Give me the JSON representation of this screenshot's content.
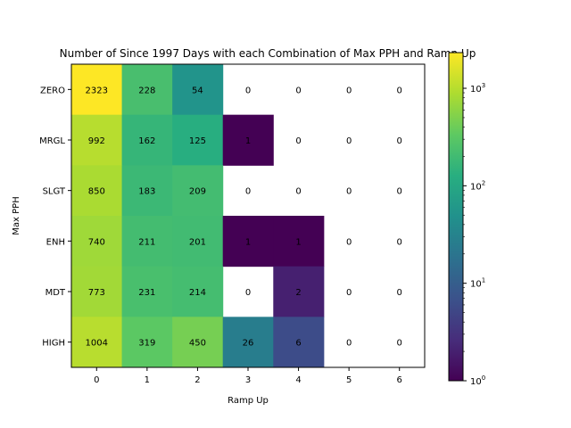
{
  "chart_data": {
    "type": "heatmap",
    "title": "Number of Since 1997 Days with each Combination of Max PPH and Ramp Up",
    "xlabel": "Ramp Up",
    "ylabel": "Max PPH",
    "x_categories": [
      "0",
      "1",
      "2",
      "3",
      "4",
      "5",
      "6"
    ],
    "y_categories": [
      "ZERO",
      "MRGL",
      "SLGT",
      "ENH",
      "MDT",
      "HIGH"
    ],
    "values": [
      [
        2323,
        228,
        54,
        0,
        0,
        0,
        0
      ],
      [
        992,
        162,
        125,
        1,
        0,
        0,
        0
      ],
      [
        850,
        183,
        209,
        0,
        0,
        0,
        0
      ],
      [
        740,
        211,
        201,
        1,
        1,
        0,
        0
      ],
      [
        773,
        231,
        214,
        0,
        2,
        0,
        0
      ],
      [
        1004,
        319,
        450,
        26,
        6,
        0,
        0
      ]
    ],
    "colormap": "viridis",
    "color_scale": "log",
    "color_range": [
      1,
      2323
    ],
    "zero_cells_rendered_as": "blank",
    "colorbar": {
      "ticks": [
        {
          "base": "10",
          "exp": "0",
          "value": 1
        },
        {
          "base": "10",
          "exp": "1",
          "value": 10
        },
        {
          "base": "10",
          "exp": "2",
          "value": 100
        },
        {
          "base": "10",
          "exp": "3",
          "value": 1000
        }
      ]
    },
    "grid": false
  }
}
